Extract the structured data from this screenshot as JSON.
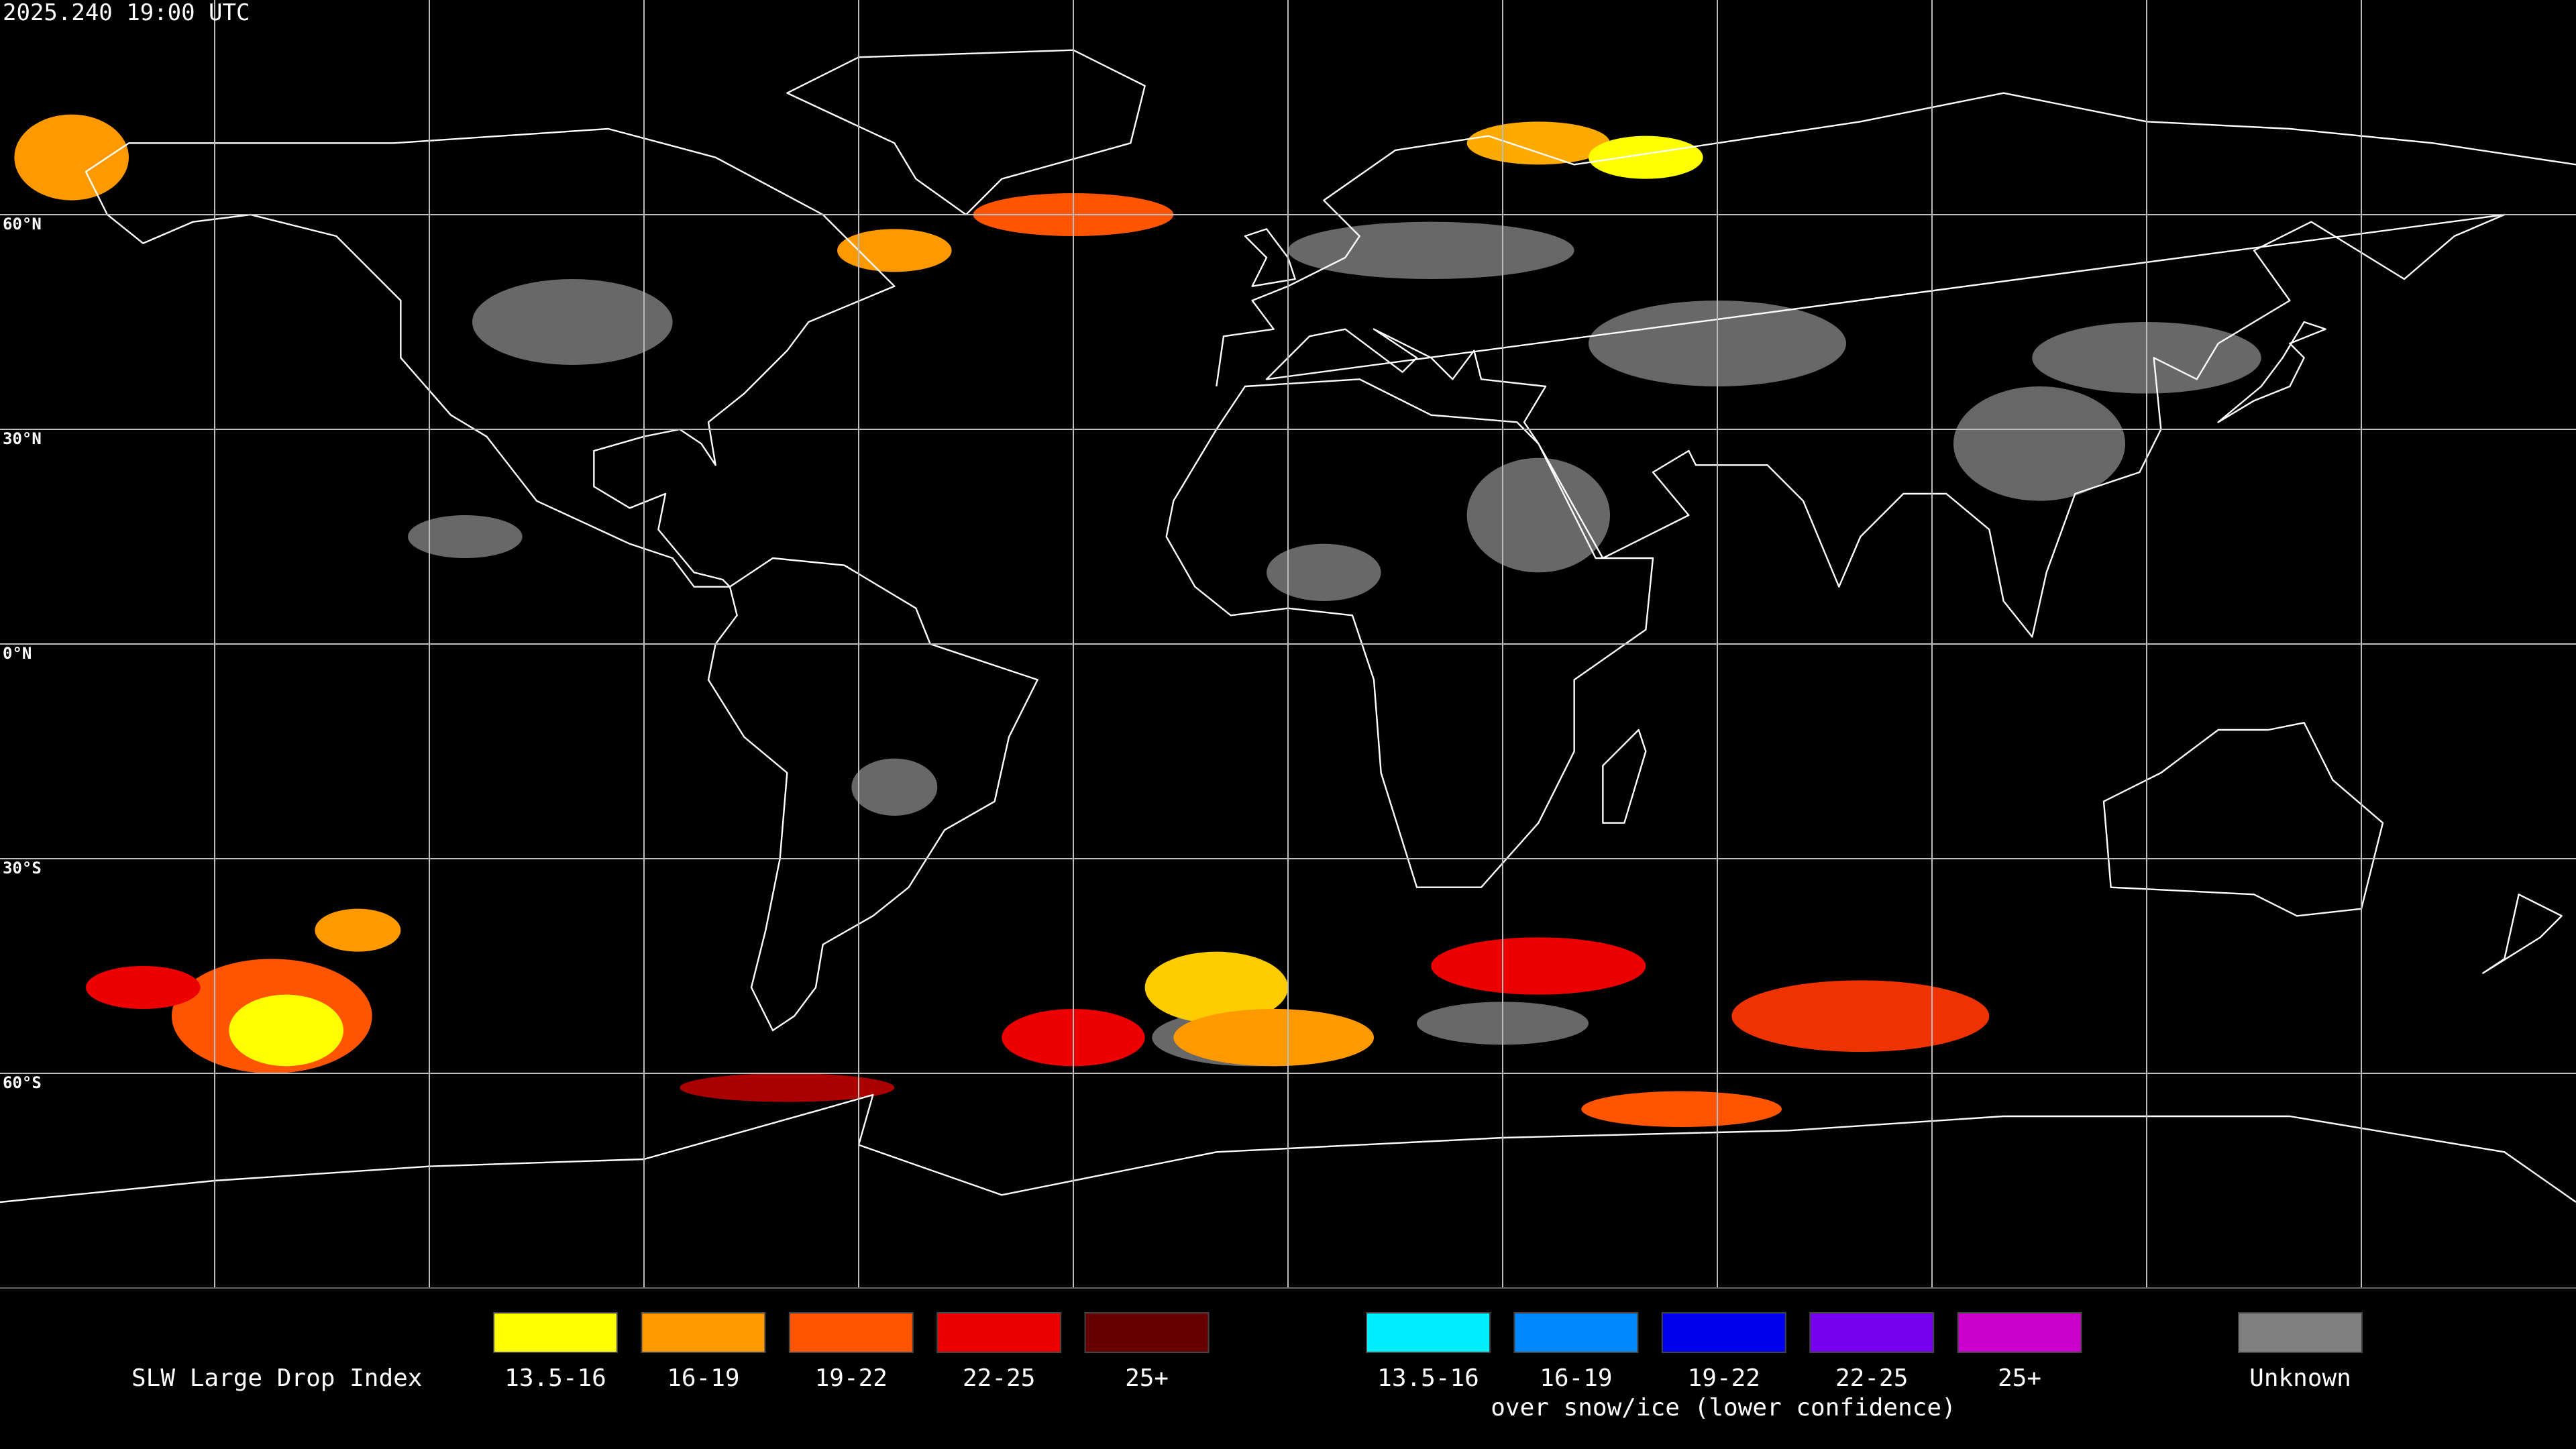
{
  "timestamp": "2025.240 19:00 UTC",
  "latitude_labels": [
    "60°N",
    "30°N",
    "0°N",
    "30°S",
    "60°S"
  ],
  "legend": {
    "title": "SLW Large Drop Index",
    "groups": [
      {
        "items": [
          {
            "label": "13.5-16",
            "color": "#ffff00"
          },
          {
            "label": "16-19",
            "color": "#ff9900"
          },
          {
            "label": "19-22",
            "color": "#ff5500"
          },
          {
            "label": "22-25",
            "color": "#ee0000"
          },
          {
            "label": "25+",
            "color": "#660000"
          }
        ]
      },
      {
        "items": [
          {
            "label": "13.5-16",
            "color": "#00eeff"
          },
          {
            "label": "16-19",
            "color": "#0088ff"
          },
          {
            "label": "19-22",
            "color": "#0000ee"
          },
          {
            "label": "22-25",
            "color": "#7700ee"
          },
          {
            "label": "25+",
            "color": "#cc00cc"
          }
        ]
      },
      {
        "items": [
          {
            "label": "Unknown",
            "color": "#808080"
          }
        ]
      }
    ],
    "snow_note": "over snow/ice (lower confidence)"
  }
}
